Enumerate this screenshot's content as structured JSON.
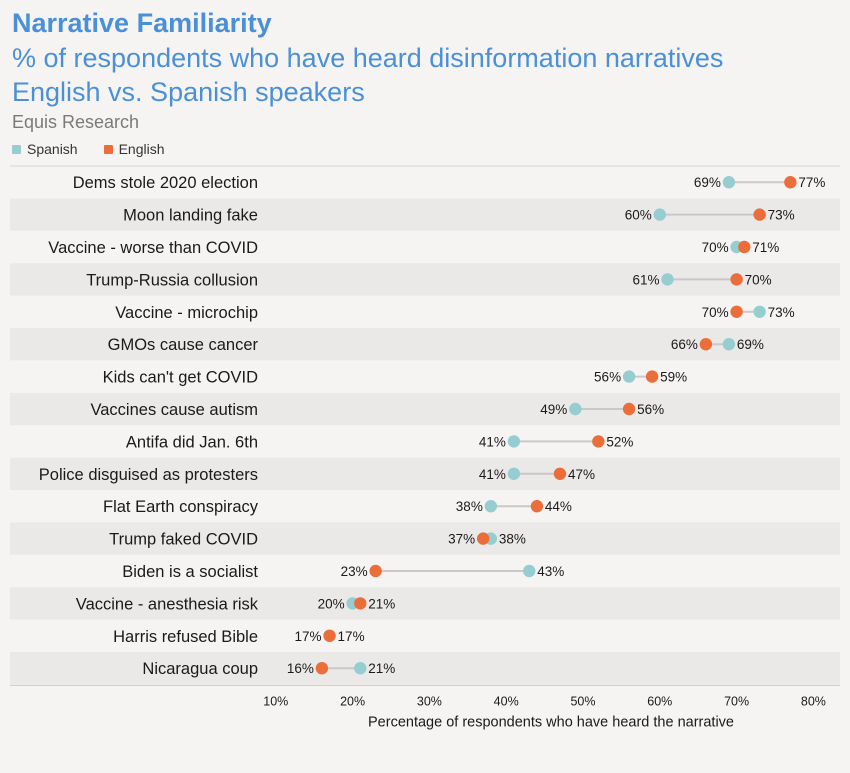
{
  "header": {
    "title": "Narrative Familiarity",
    "subtitle_1": "% of respondents who have heard disinformation narratives",
    "subtitle_2": "English vs. Spanish speakers",
    "source": "Equis Research"
  },
  "colors": {
    "spanish": "#96cdd0",
    "english": "#eb6e3a",
    "connector": "#c9c9c9",
    "band": "#ebe9e7",
    "title": "#4a90d9"
  },
  "chart_data": {
    "type": "dot",
    "title": "Narrative Familiarity",
    "xlabel": "Percentage of respondents who have heard the narrative",
    "xlim": [
      8,
      82
    ],
    "xticks": [
      10,
      20,
      30,
      40,
      50,
      60,
      70,
      80
    ],
    "tick_labels": [
      "10%",
      "20%",
      "30%",
      "40%",
      "50%",
      "60%",
      "70%",
      "80%"
    ],
    "grid": false,
    "legend": {
      "position": "top-left",
      "entries": [
        "Spanish",
        "English"
      ]
    },
    "categories": [
      "Dems stole 2020 election",
      "Moon landing fake",
      "Vaccine - worse than COVID",
      "Trump-Russia collusion",
      "Vaccine - microchip",
      "GMOs cause cancer",
      "Kids can't get COVID",
      "Vaccines cause autism",
      "Antifa did Jan. 6th",
      "Police disguised as protesters",
      "Flat Earth conspiracy",
      "Trump faked COVID",
      "Biden is a socialist",
      "Vaccine - anesthesia risk",
      "Harris refused Bible",
      "Nicaragua coup"
    ],
    "series": [
      {
        "name": "Spanish",
        "values": [
          69,
          60,
          70,
          61,
          73,
          69,
          56,
          49,
          41,
          41,
          38,
          38,
          43,
          20,
          17,
          21
        ]
      },
      {
        "name": "English",
        "values": [
          77,
          73,
          71,
          70,
          70,
          66,
          59,
          56,
          52,
          47,
          44,
          37,
          23,
          21,
          17,
          16
        ]
      }
    ]
  }
}
